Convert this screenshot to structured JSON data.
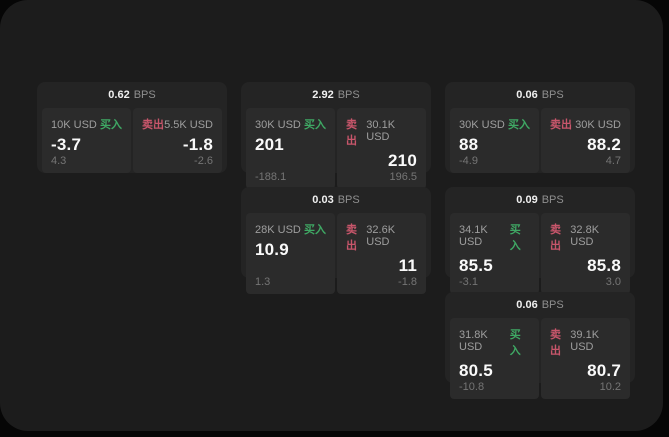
{
  "labels": {
    "bps_unit": "BPS",
    "buy": "买入",
    "sell": "卖出"
  },
  "colors": {
    "buy_green": "#3fa864",
    "sell_red": "#c8566b",
    "panel_bg": "#1c1c1c",
    "card_bg": "#242424",
    "inner_bg": "#2b2b2b"
  },
  "cards": [
    {
      "row": 0,
      "col": 0,
      "bps": "0.62",
      "buy": {
        "notional": "10K USD",
        "price": "-3.7",
        "delta": "4.3"
      },
      "sell": {
        "notional": "5.5K USD",
        "price": "-1.8",
        "delta": "-2.6"
      }
    },
    {
      "row": 0,
      "col": 1,
      "bps": "2.92",
      "buy": {
        "notional": "30K USD",
        "price": "201",
        "delta": "-188.1"
      },
      "sell": {
        "notional": "30.1K USD",
        "price": "210",
        "delta": "196.5"
      }
    },
    {
      "row": 0,
      "col": 2,
      "bps": "0.06",
      "buy": {
        "notional": "30K USD",
        "price": "88",
        "delta": "-4.9"
      },
      "sell": {
        "notional": "30K USD",
        "price": "88.2",
        "delta": "4.7"
      }
    },
    {
      "row": 1,
      "col": 1,
      "bps": "0.03",
      "buy": {
        "notional": "28K USD",
        "price": "10.9",
        "delta": "1.3"
      },
      "sell": {
        "notional": "32.6K USD",
        "price": "11",
        "delta": "-1.8"
      }
    },
    {
      "row": 1,
      "col": 2,
      "bps": "0.09",
      "buy": {
        "notional": "34.1K USD",
        "price": "85.5",
        "delta": "-3.1"
      },
      "sell": {
        "notional": "32.8K USD",
        "price": "85.8",
        "delta": "3.0"
      }
    },
    {
      "row": 2,
      "col": 2,
      "bps": "0.06",
      "buy": {
        "notional": "31.8K USD",
        "price": "80.5",
        "delta": "-10.8"
      },
      "sell": {
        "notional": "39.1K USD",
        "price": "80.7",
        "delta": "10.2"
      }
    }
  ]
}
